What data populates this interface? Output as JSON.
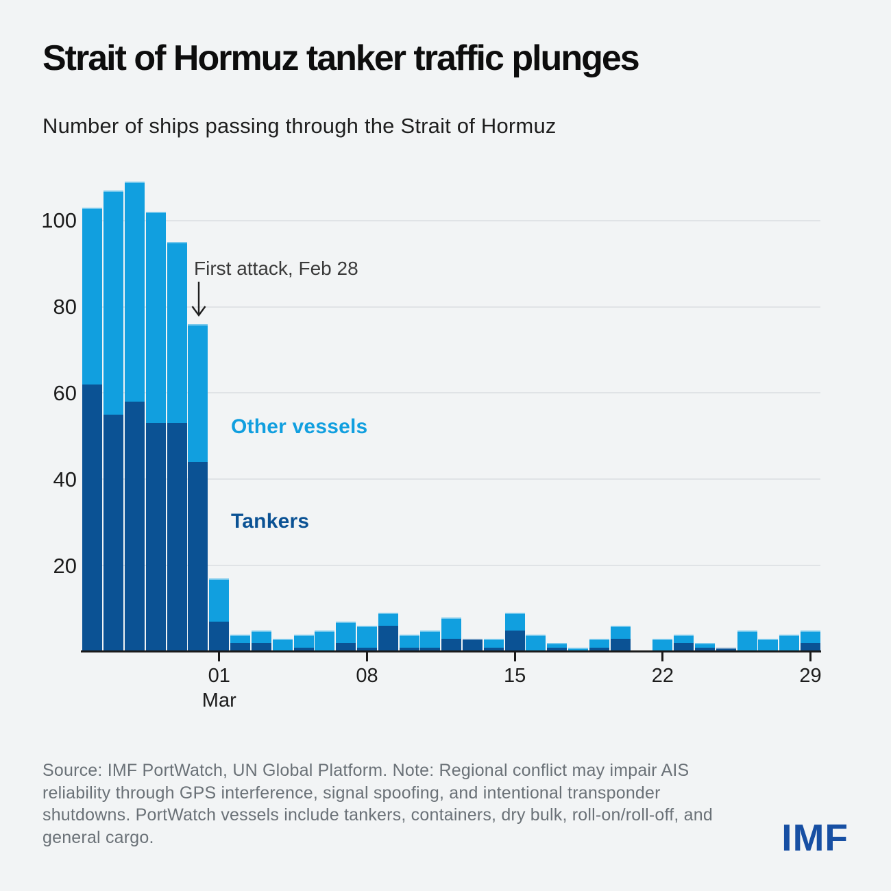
{
  "header": {
    "title": "Strait of Hormuz tanker traffic plunges",
    "subtitle": "Number of ships passing through the Strait of Hormuz"
  },
  "chart_data": {
    "type": "bar",
    "stacked": true,
    "title": "Strait of Hormuz tanker traffic plunges",
    "subtitle": "Number of ships passing through the Strait of Hormuz",
    "x": [
      "Feb 23",
      "Feb 24",
      "Feb 25",
      "Feb 26",
      "Feb 27",
      "Feb 28",
      "Mar 01",
      "Mar 02",
      "Mar 03",
      "Mar 04",
      "Mar 05",
      "Mar 06",
      "Mar 07",
      "Mar 08",
      "Mar 09",
      "Mar 10",
      "Mar 11",
      "Mar 12",
      "Mar 13",
      "Mar 14",
      "Mar 15",
      "Mar 16",
      "Mar 17",
      "Mar 18",
      "Mar 19",
      "Mar 20",
      "Mar 21",
      "Mar 22",
      "Mar 23",
      "Mar 24",
      "Mar 25",
      "Mar 26",
      "Mar 27",
      "Mar 28",
      "Mar 29"
    ],
    "series": [
      {
        "name": "Tankers",
        "color": "#0B5294",
        "values": [
          62,
          55,
          58,
          53,
          53,
          44,
          7,
          2,
          2,
          0,
          1,
          0,
          2,
          1,
          6,
          1,
          1,
          3,
          3,
          1,
          5,
          0,
          1,
          0,
          1,
          3,
          0,
          0,
          2,
          1,
          1,
          0,
          0,
          0,
          2
        ]
      },
      {
        "name": "Other vessels",
        "color": "#119FDF",
        "values": [
          41,
          52,
          51,
          49,
          42,
          32,
          10,
          2,
          3,
          3,
          3,
          5,
          5,
          5,
          3,
          3,
          4,
          5,
          0,
          2,
          4,
          4,
          1,
          1,
          2,
          3,
          0,
          3,
          2,
          1,
          0,
          5,
          3,
          4,
          3
        ]
      }
    ],
    "ylim": [
      0,
      110
    ],
    "yticks": [
      20,
      40,
      60,
      80,
      100
    ],
    "xticks": [
      {
        "index": 6,
        "label": "01",
        "sublabel": "Mar"
      },
      {
        "index": 13,
        "label": "08"
      },
      {
        "index": 20,
        "label": "15"
      },
      {
        "index": 27,
        "label": "22"
      },
      {
        "index": 34,
        "label": "29"
      }
    ],
    "grid": "horizontal",
    "legend_position": "inside-left",
    "annotation": {
      "text": "First attack, Feb 28",
      "target": "Feb 28"
    }
  },
  "footer": {
    "lines": [
      "Source: IMF PortWatch, UN Global Platform. Note: Regional conflict may impair AIS",
      "reliability through GPS interference, signal spoofing, and intentional transponder",
      "shutdowns. PortWatch vessels include tankers, containers, dry bulk, roll-on/roll-off, and",
      "general cargo."
    ],
    "logo": "IMF"
  },
  "colors": {
    "background": "#F2F4F5",
    "tankers": "#0B5294",
    "other_vessels": "#119FDF",
    "gridline": "#E0E3E6",
    "axis": "#1A1A1A",
    "title_text": "#0D0D0D",
    "footer_text": "#6A7177",
    "logo_blue": "#174FA3"
  }
}
